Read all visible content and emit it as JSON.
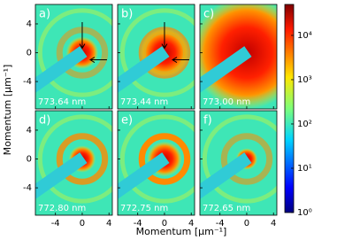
{
  "chart_data": {
    "type": "heatmap",
    "xlabel": "Momentum [μm⁻¹]",
    "ylabel": "Momentum [μm⁻¹]",
    "xlim": [
      -7,
      4.5
    ],
    "ylim": [
      -7.8,
      6.7
    ],
    "xticks": [
      -4,
      0,
      4
    ],
    "yticks": [
      -4,
      0,
      4
    ],
    "panels": [
      {
        "label": "a)",
        "wavelength": "773.64 nm"
      },
      {
        "label": "b)",
        "wavelength": "773.44 nm"
      },
      {
        "label": "c)",
        "wavelength": "773.00 nm"
      },
      {
        "label": "d)",
        "wavelength": "772.80 nm"
      },
      {
        "label": "e)",
        "wavelength": "772.75 nm"
      },
      {
        "label": "f)",
        "wavelength": "772.65 nm"
      }
    ],
    "colorbar": {
      "scale": "log",
      "colormap": "jet",
      "lim": [
        1,
        50000
      ],
      "ticks": [
        {
          "value": 1,
          "label": "10⁰"
        },
        {
          "value": 10,
          "label": "10¹"
        },
        {
          "value": 100,
          "label": "10²"
        },
        {
          "value": 1000,
          "label": "10³"
        },
        {
          "value": 10000,
          "label": "10⁴"
        }
      ]
    }
  }
}
